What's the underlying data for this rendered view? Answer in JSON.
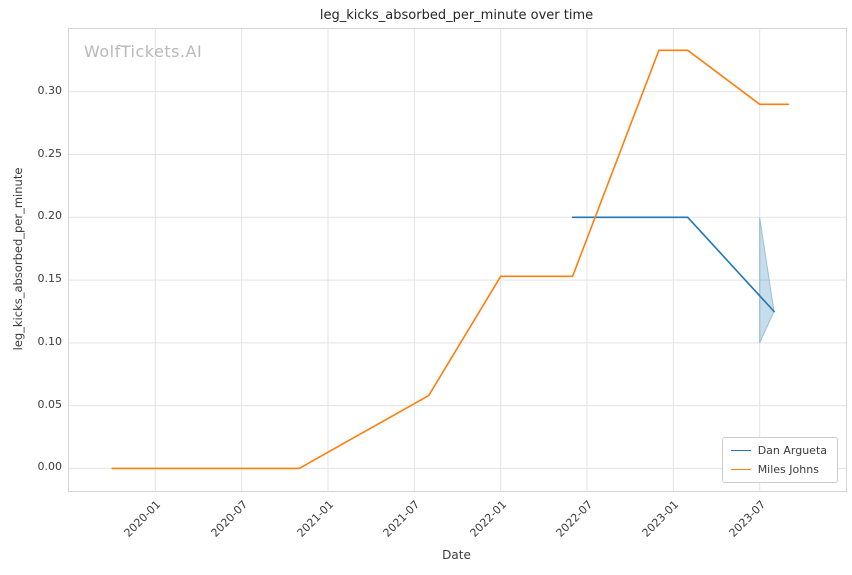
{
  "watermark": "WolfTickets.AI",
  "chart_data": {
    "type": "line",
    "title": "leg_kicks_absorbed_per_minute over time",
    "xlabel": "Date",
    "ylabel": "leg_kicks_absorbed_per_minute",
    "x_ticks": [
      "2020-01",
      "2020-07",
      "2021-01",
      "2021-07",
      "2022-01",
      "2022-07",
      "2023-01",
      "2023-07"
    ],
    "y_ticks": [
      0.0,
      0.05,
      0.1,
      0.15,
      0.2,
      0.25,
      0.3
    ],
    "xlim": [
      "2019-07",
      "2024-01"
    ],
    "ylim": [
      -0.018,
      0.35
    ],
    "grid": true,
    "legend_position": "lower right",
    "grid_color": "#e3e3e3",
    "series": [
      {
        "name": "Dan Argueta",
        "color": "#1f77b4",
        "points": [
          [
            "2022-06",
            0.2
          ],
          [
            "2023-02",
            0.2
          ],
          [
            "2023-08",
            0.125
          ]
        ]
      },
      {
        "name": "Miles Johns",
        "color": "#ff7f0e",
        "points": [
          [
            "2019-10",
            0.0
          ],
          [
            "2020-11",
            0.0
          ],
          [
            "2021-08",
            0.058
          ],
          [
            "2022-01",
            0.153
          ],
          [
            "2022-06",
            0.153
          ],
          [
            "2022-12",
            0.333
          ],
          [
            "2023-02",
            0.333
          ],
          [
            "2023-07",
            0.29
          ],
          [
            "2023-09",
            0.29
          ]
        ]
      }
    ],
    "band": {
      "series": "Dan Argueta",
      "color": "#1f77b4",
      "opacity": 0.25,
      "upper": [
        [
          "2023-07",
          0.2
        ],
        [
          "2023-08",
          0.125
        ]
      ],
      "lower": [
        [
          "2023-07",
          0.1
        ],
        [
          "2023-08",
          0.125
        ]
      ]
    }
  }
}
